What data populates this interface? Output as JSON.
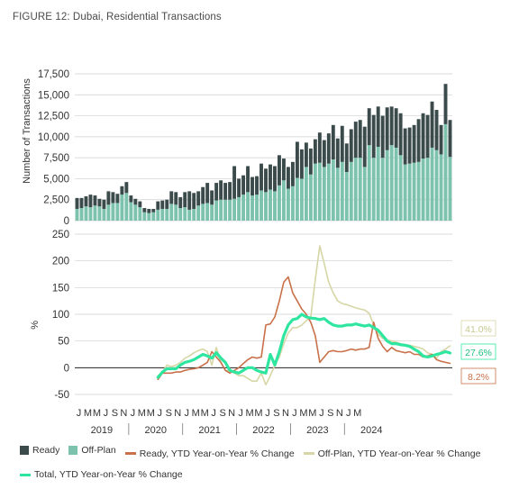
{
  "figure_title": "FIGURE 12: Dubai, Residential Transactions",
  "colors": {
    "ready": "#3b4a4a",
    "off_plan": "#7cc2ad",
    "ready_yoy": "#c9714a",
    "off_plan_yoy": "#d6d6a6",
    "total_yoy": "#2fe6a0",
    "grid": "#cfcfcf",
    "axis_text": "#333333"
  },
  "legend": [
    {
      "label": "Ready",
      "kind": "box",
      "color": "#3b4a4a"
    },
    {
      "label": "Off-Plan",
      "kind": "box",
      "color": "#7cc2ad"
    },
    {
      "label": "Ready, YTD Year-on-Year % Change",
      "kind": "line",
      "color": "#c9714a"
    },
    {
      "label": "Off-Plan, YTD Year-on-Year % Change",
      "kind": "line",
      "color": "#d6d6a6"
    },
    {
      "label": "Total, YTD Year-on-Year % Change",
      "kind": "line",
      "color": "#2fe6a0"
    }
  ],
  "chart_data": [
    {
      "type": "bar",
      "stacked": true,
      "ylabel": "Number of Transactions",
      "ylim": [
        0,
        17500
      ],
      "yticks": [
        "0",
        "2,500",
        "5,000",
        "7,500",
        "10,000",
        "12,500",
        "15,000",
        "17,500"
      ],
      "ytick_values": [
        0,
        2500,
        5000,
        7500,
        10000,
        12500,
        15000,
        17500
      ],
      "grid": true,
      "x_month_labels": [
        "J",
        "M",
        "M",
        "J",
        "S",
        "N",
        "J",
        "M",
        "M",
        "J",
        "S",
        "N",
        "J",
        "M",
        "M",
        "J",
        "S",
        "N",
        "J",
        "M",
        "M",
        "J",
        "S",
        "N",
        "J",
        "M",
        "M",
        "J",
        "S",
        "N",
        "J",
        "M"
      ],
      "x_year_labels": [
        "2019",
        "2020",
        "2021",
        "2022",
        "2023",
        "2024"
      ],
      "categories_start": "2019-01",
      "series": [
        {
          "name": "Off-Plan",
          "values": [
            1400,
            1500,
            1700,
            1600,
            1800,
            1700,
            1400,
            1900,
            2100,
            2100,
            3100,
            3300,
            2200,
            1900,
            1600,
            1000,
            900,
            1000,
            1300,
            1400,
            1400,
            2000,
            1900,
            1500,
            1600,
            1300,
            1400,
            1800,
            2000,
            2100,
            1900,
            2400,
            2500,
            2500,
            2500,
            2600,
            2800,
            3100,
            3400,
            3000,
            3100,
            3600,
            3400,
            3700,
            3500,
            4200,
            4800,
            3800,
            4100,
            5100,
            5000,
            6400,
            5500,
            6800,
            6900,
            6400,
            6800,
            7300,
            6300,
            7000,
            5800,
            7000,
            7500,
            7500,
            6400,
            9000,
            7500,
            8800,
            7500,
            8400,
            9000,
            8700,
            7800,
            6700,
            6800,
            6900,
            7000,
            7400,
            7500,
            8700,
            8400,
            7900,
            11500,
            7600
          ]
        },
        {
          "name": "Ready",
          "values": [
            1300,
            1200,
            1200,
            1500,
            1200,
            900,
            1100,
            1600,
            1300,
            1100,
            1000,
            1300,
            800,
            700,
            700,
            500,
            500,
            400,
            1000,
            1000,
            1100,
            1500,
            1500,
            1300,
            1800,
            2200,
            1900,
            1700,
            2000,
            2400,
            1700,
            2100,
            2300,
            2000,
            2100,
            3900,
            2200,
            2300,
            3100,
            2200,
            2200,
            3200,
            2800,
            3000,
            3000,
            3600,
            2600,
            2600,
            2900,
            4300,
            3500,
            2900,
            3100,
            2900,
            3600,
            3200,
            3600,
            4100,
            3500,
            4300,
            3400,
            3900,
            4300,
            4500,
            4800,
            4400,
            5100,
            4800,
            5000,
            5100,
            4600,
            4700,
            5000,
            4300,
            4300,
            4500,
            5100,
            5400,
            5100,
            5500,
            4800,
            3500,
            4800,
            4400
          ]
        }
      ]
    },
    {
      "type": "line",
      "ylabel": "%",
      "ylim": [
        -50,
        250
      ],
      "yticks": [
        "-50",
        "0",
        "50",
        "100",
        "150",
        "200",
        "250"
      ],
      "ytick_values": [
        -50,
        0,
        50,
        100,
        150,
        200,
        250
      ],
      "grid": true,
      "x_month_labels": [
        "J",
        "M",
        "M",
        "J",
        "S",
        "N",
        "J",
        "M",
        "M",
        "J",
        "S",
        "N",
        "J",
        "M",
        "M",
        "J",
        "S",
        "N",
        "J",
        "M",
        "M",
        "J",
        "S",
        "N",
        "J",
        "M",
        "M",
        "J",
        "S",
        "N",
        "J",
        "M"
      ],
      "x_year_labels": [
        "2019",
        "2020",
        "2021",
        "2022",
        "2023",
        "2024"
      ],
      "categories_start": "2019-01",
      "end_labels": [
        {
          "series": "Off-Plan, YTD Year-on-Year % Change",
          "text": "41.0%",
          "value": 41.0
        },
        {
          "series": "Total, YTD Year-on-Year % Change",
          "text": "27.6%",
          "value": 27.6
        },
        {
          "series": "Ready, YTD Year-on-Year % Change",
          "text": "8.2%",
          "value": 8.2
        }
      ],
      "series": [
        {
          "name": "Ready, YTD Year-on-Year % Change",
          "values": [
            -22,
            -10,
            -10,
            -10,
            -8,
            -8,
            -5,
            -3,
            -2,
            0,
            5,
            10,
            30,
            20,
            10,
            -5,
            -10,
            -5,
            0,
            8,
            15,
            20,
            18,
            20,
            80,
            82,
            95,
            125,
            160,
            170,
            140,
            125,
            110,
            100,
            85,
            60,
            10,
            20,
            30,
            32,
            30,
            30,
            32,
            35,
            33,
            35,
            35,
            38,
            85,
            55,
            40,
            30,
            38,
            32,
            30,
            28,
            30,
            25,
            25,
            20,
            22,
            25,
            15,
            12,
            10,
            8.2
          ]
        },
        {
          "name": "Off-Plan, YTD Year-on-Year % Change",
          "values": [
            -15,
            -8,
            5,
            2,
            5,
            10,
            18,
            22,
            28,
            32,
            35,
            30,
            5,
            38,
            10,
            -5,
            -5,
            -10,
            -15,
            -15,
            -20,
            -25,
            -25,
            -10,
            -32,
            -15,
            5,
            20,
            45,
            65,
            75,
            75,
            80,
            88,
            95,
            165,
            228,
            195,
            160,
            140,
            125,
            120,
            118,
            115,
            112,
            110,
            108,
            102,
            80,
            62,
            55,
            52,
            50,
            48,
            45,
            43,
            42,
            40,
            38,
            35,
            28,
            25,
            18,
            30,
            35,
            41.0
          ]
        },
        {
          "name": "Total, YTD Year-on-Year % Change",
          "values": [
            -18,
            -8,
            -2,
            -2,
            -2,
            5,
            10,
            12,
            15,
            20,
            25,
            22,
            18,
            28,
            18,
            10,
            -5,
            -8,
            -10,
            -5,
            0,
            0,
            -5,
            -8,
            -10,
            25,
            5,
            30,
            60,
            80,
            90,
            92,
            100,
            95,
            93,
            92,
            90,
            92,
            85,
            80,
            78,
            78,
            80,
            80,
            82,
            80,
            78,
            80,
            75,
            70,
            60,
            50,
            45,
            45,
            43,
            42,
            40,
            35,
            30,
            22,
            20,
            22,
            25,
            27,
            30,
            27.6
          ]
        }
      ]
    }
  ]
}
